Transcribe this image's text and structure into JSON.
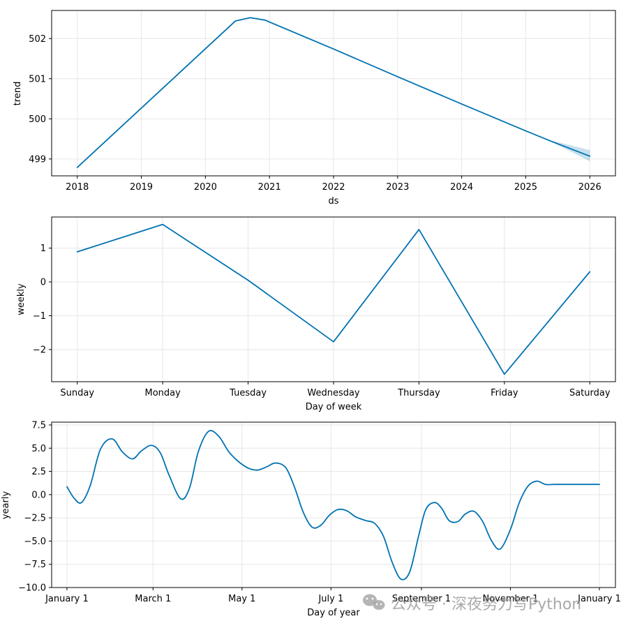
{
  "chart_data": [
    {
      "type": "line",
      "ylabel": "trend",
      "xlabel": "ds",
      "xlim": [
        2017.6,
        2026.4
      ],
      "ylim": [
        498.58,
        502.7
      ],
      "xticks": [
        2018,
        2019,
        2020,
        2021,
        2022,
        2023,
        2024,
        2025,
        2026
      ],
      "xtick_labels": [
        "2018",
        "2019",
        "2020",
        "2021",
        "2022",
        "2023",
        "2024",
        "2025",
        "2026"
      ],
      "yticks": [
        499,
        500,
        501,
        502
      ],
      "ytick_labels": [
        "499",
        "500",
        "501",
        "502"
      ],
      "grid": true,
      "series": [
        {
          "name": "trend",
          "x": [
            2018.0,
            2020.47,
            2020.7,
            2020.93,
            2022.0,
            2023.0,
            2024.0,
            2025.0,
            2025.4,
            2026.0
          ],
          "y": [
            498.79,
            502.44,
            502.52,
            502.46,
            501.74,
            501.05,
            500.37,
            499.7,
            499.44,
            499.07
          ],
          "lower": [
            498.79,
            502.44,
            502.52,
            502.46,
            501.74,
            501.05,
            500.37,
            499.7,
            499.43,
            498.94
          ],
          "upper": [
            498.79,
            502.44,
            502.52,
            502.46,
            501.74,
            501.05,
            500.37,
            499.7,
            499.46,
            499.22
          ]
        }
      ]
    },
    {
      "type": "line",
      "ylabel": "weekly",
      "xlabel": "Day of week",
      "categories": [
        "Sunday",
        "Monday",
        "Tuesday",
        "Wednesday",
        "Thursday",
        "Friday",
        "Saturday"
      ],
      "ylim": [
        -2.95,
        1.92
      ],
      "yticks": [
        1,
        0,
        -1,
        -2
      ],
      "ytick_labels": [
        "1",
        "0",
        "−1",
        "−2"
      ],
      "grid": true,
      "series": [
        {
          "name": "weekly",
          "values": [
            0.89,
            1.7,
            0.05,
            -1.77,
            1.55,
            -2.73,
            0.3
          ]
        }
      ]
    },
    {
      "type": "line",
      "ylabel": "yearly",
      "xlabel": "Day of year",
      "xlim": [
        -10.5,
        376.0
      ],
      "ylim": [
        -10.0,
        7.8
      ],
      "xticks": [
        0,
        59,
        120,
        181,
        243,
        304,
        365
      ],
      "xtick_labels": [
        "January 1",
        "March 1",
        "May 1",
        "July 1",
        "September 1",
        "November 1",
        "January 1"
      ],
      "yticks": [
        7.5,
        5.0,
        2.5,
        0.0,
        -2.5,
        -5.0,
        -7.5,
        -10.0
      ],
      "ytick_labels": [
        "7.5",
        "5.0",
        "2.5",
        "0.0",
        "−2.5",
        "−5.0",
        "−7.5",
        "−10.0"
      ],
      "grid": true,
      "series": [
        {
          "name": "yearly",
          "x": [
            0,
            5,
            10,
            16,
            23,
            31,
            38,
            45,
            51,
            58,
            64,
            70,
            78,
            84,
            90,
            97,
            104,
            111,
            118,
            125,
            131,
            137,
            143,
            150,
            156,
            162,
            168,
            174,
            180,
            186,
            192,
            198,
            205,
            211,
            217,
            223,
            229,
            235,
            241,
            246,
            252,
            257,
            262,
            268,
            273,
            279,
            285,
            291,
            297,
            304,
            310,
            316,
            322,
            328,
            334,
            341,
            347,
            353,
            359,
            365
          ],
          "y": [
            0.85,
            -0.4,
            -0.85,
            1.0,
            4.9,
            6.0,
            4.6,
            3.85,
            4.7,
            5.3,
            4.5,
            2.1,
            -0.45,
            0.7,
            4.6,
            6.8,
            6.3,
            4.6,
            3.5,
            2.8,
            2.65,
            3.0,
            3.4,
            2.9,
            0.8,
            -1.9,
            -3.5,
            -3.3,
            -2.2,
            -1.6,
            -1.75,
            -2.4,
            -2.8,
            -3.1,
            -4.5,
            -7.3,
            -9.1,
            -8.3,
            -4.5,
            -1.6,
            -0.85,
            -1.5,
            -2.8,
            -2.9,
            -2.1,
            -1.8,
            -2.9,
            -4.95,
            -5.85,
            -3.75,
            -0.9,
            0.9,
            1.45,
            1.1,
            1.1,
            1.1,
            1.1,
            1.1,
            1.1,
            1.1
          ]
        }
      ]
    }
  ],
  "watermark": {
    "text": "公众号 · 深夜努力写Python",
    "icon": "wechat-icon"
  }
}
